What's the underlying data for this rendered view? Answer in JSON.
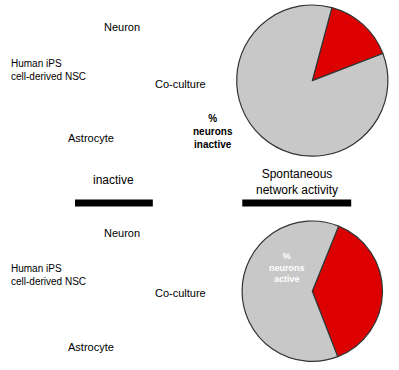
{
  "chart_data": [
    {
      "type": "pie",
      "values": [
        15,
        85
      ],
      "colors": [
        "#DD0000",
        "#C8C8C8"
      ],
      "annotations": [
        {
          "text": "%\nneurons\ninactive",
          "color": "#000000"
        },
        {
          "text": "Neuron",
          "color": "#000000"
        },
        {
          "text": "Human iPS\ncell-derived NSC",
          "color": "#000000"
        },
        {
          "text": "Astrocyte",
          "color": "#000000"
        },
        {
          "text": "Co-culture",
          "color": "#000000"
        },
        {
          "text": "inactive",
          "color": "#000000"
        }
      ]
    },
    {
      "type": "pie",
      "values": [
        38,
        62
      ],
      "colors": [
        "#DD0000",
        "#C8C8C8"
      ],
      "annotations": [
        {
          "text": "%\nneurons\nactive",
          "color": "#FFFFFF"
        },
        {
          "text": "Neuron",
          "color": "#000000"
        },
        {
          "text": "Human iPS\ncell-derived NSC",
          "color": "#000000"
        },
        {
          "text": "Astrocyte",
          "color": "#000000"
        },
        {
          "text": "Co-culture",
          "color": "#000000"
        },
        {
          "text": "Spontaneous\nnetwork activity",
          "color": "#000000"
        }
      ]
    }
  ]
}
